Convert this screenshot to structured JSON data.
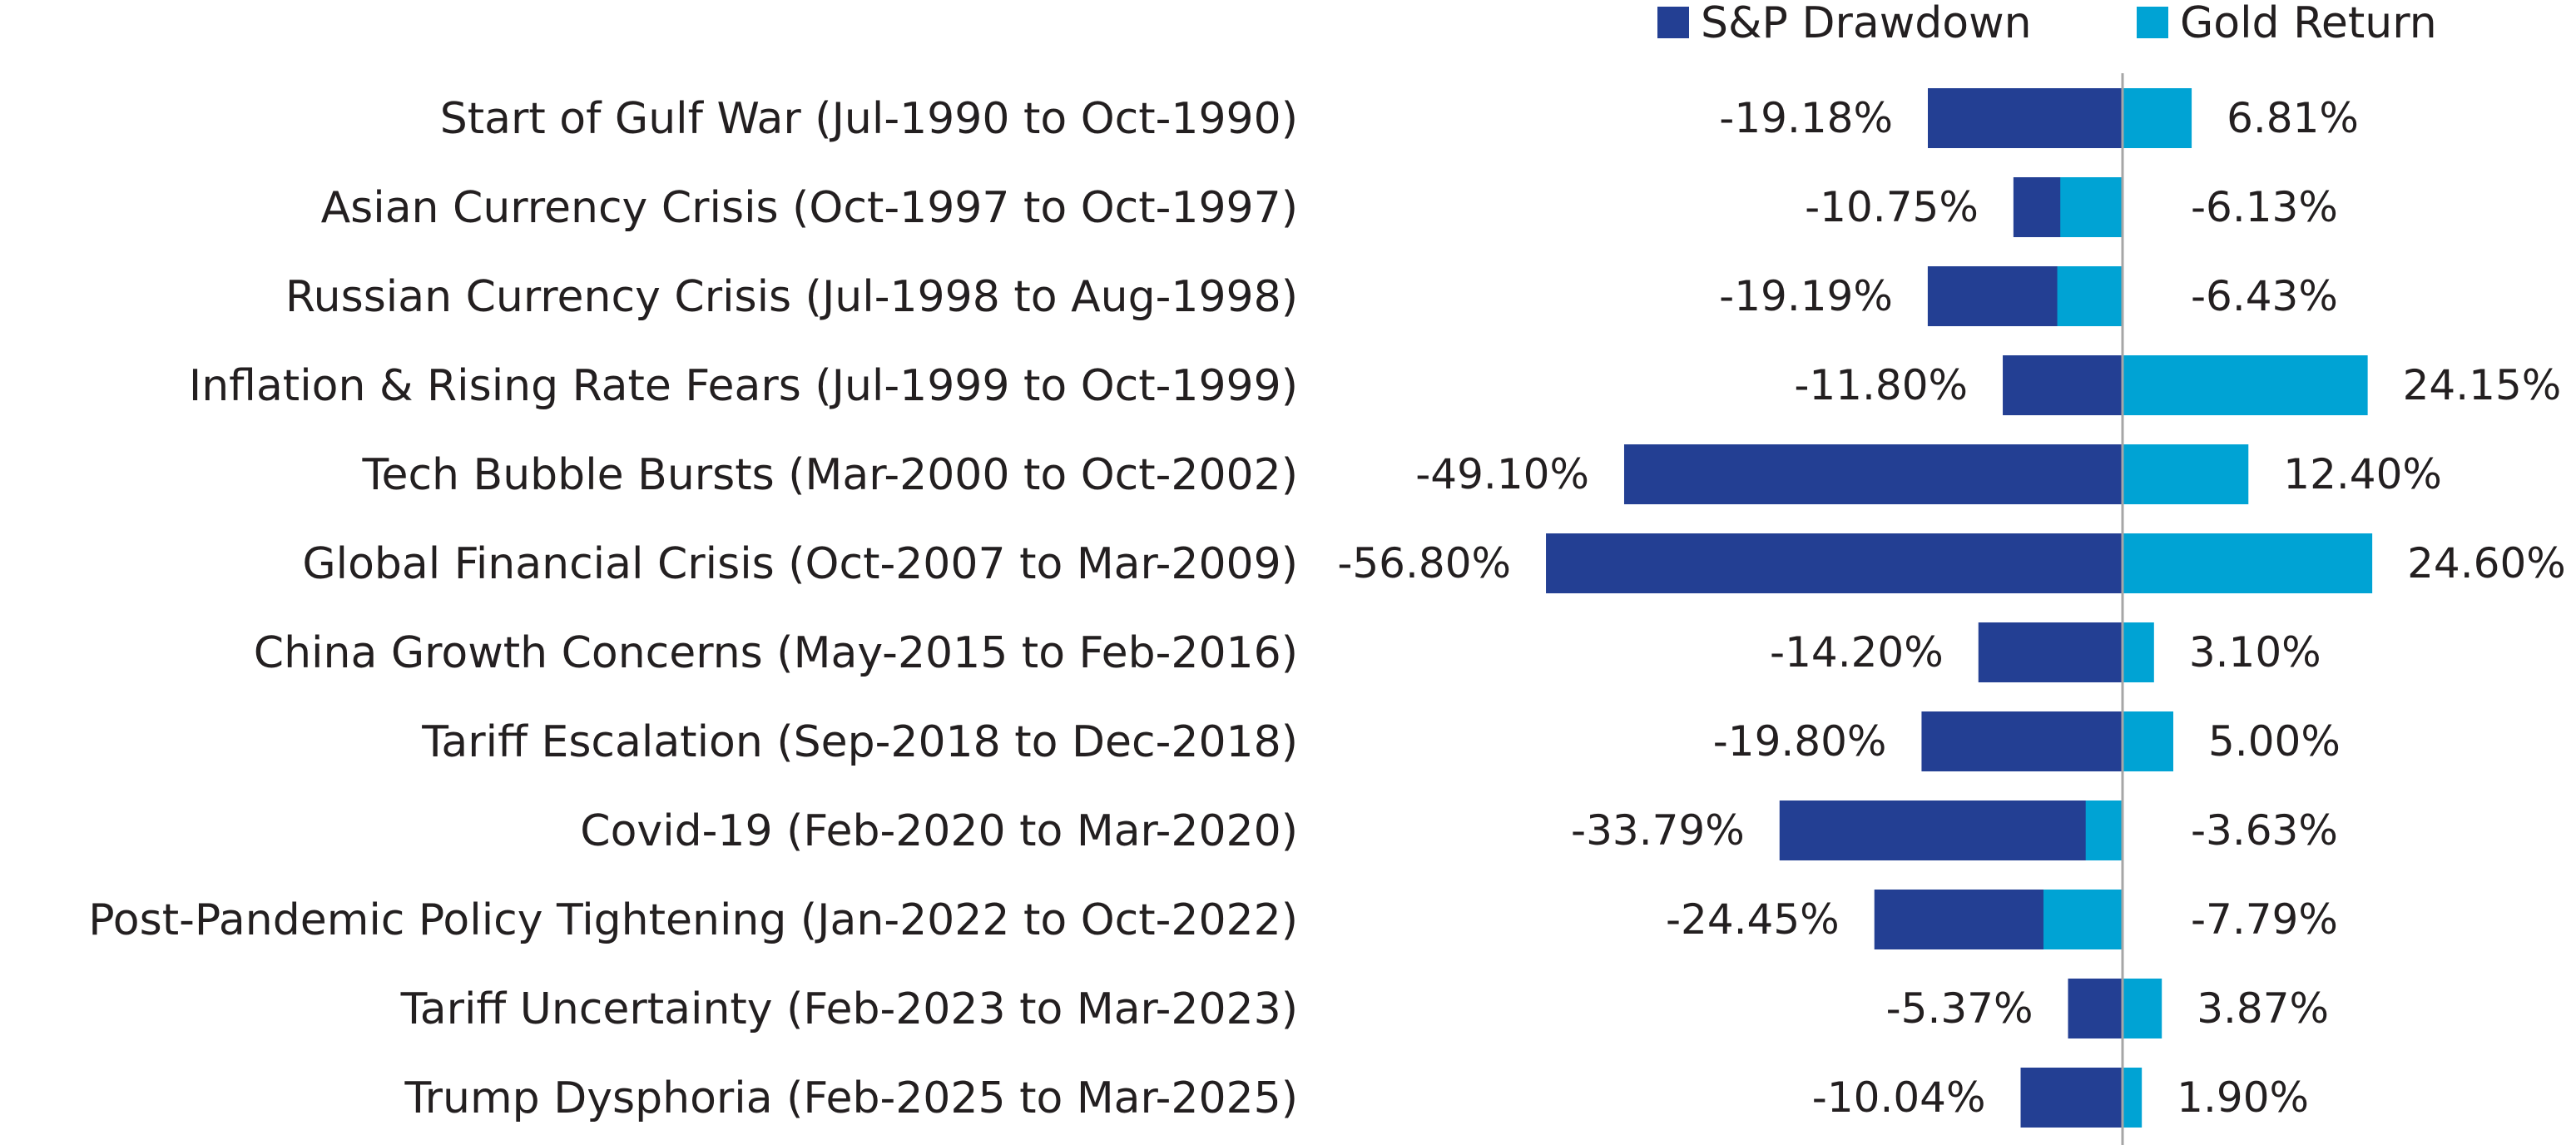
{
  "chart_data": {
    "type": "bar",
    "orientation": "horizontal",
    "categories": [
      "Start of Gulf War (Jul-1990 to Oct-1990)",
      "Asian Currency Crisis (Oct-1997 to Oct-1997)",
      "Russian Currency Crisis (Jul-1998 to Aug-1998)",
      "Inflation & Rising Rate Fears (Jul-1999 to Oct-1999)",
      "Tech Bubble Bursts (Mar-2000 to Oct-2002)",
      "Global Financial Crisis (Oct-2007 to Mar-2009)",
      "China Growth Concerns (May-2015 to Feb-2016)",
      "Tariff Escalation (Sep-2018 to Dec-2018)",
      "Covid-19 (Feb-2020 to Mar-2020)",
      "Post-Pandemic Policy Tightening (Jan-2022 to Oct-2022)",
      "Tariff Uncertainty (Feb-2023 to Mar-2023)",
      "Trump Dysphoria (Feb-2025 to Mar-2025)"
    ],
    "series": [
      {
        "name": "S&P Drawdown",
        "color": "#233f93",
        "values": [
          -19.18,
          -10.75,
          -19.19,
          -11.8,
          -49.1,
          -56.8,
          -14.2,
          -19.8,
          -33.79,
          -24.45,
          -5.37,
          -10.04
        ],
        "labels": [
          "-19.18%",
          "-10.75%",
          "-19.19%",
          "-11.80%",
          "-49.10%",
          "-56.80%",
          "-14.20%",
          "-19.80%",
          "-33.79%",
          "-24.45%",
          "-5.37%",
          "-10.04%"
        ]
      },
      {
        "name": "Gold Return",
        "color": "#00a3d4",
        "values": [
          6.81,
          -6.13,
          -6.43,
          24.15,
          12.4,
          24.6,
          3.1,
          5.0,
          -3.63,
          -7.79,
          3.87,
          1.9
        ],
        "labels": [
          "6.81%",
          "-6.13%",
          "-6.43%",
          "24.15%",
          "12.40%",
          "24.60%",
          "3.10%",
          "5.00%",
          "-3.63%",
          "-7.79%",
          "3.87%",
          "1.90%"
        ]
      }
    ],
    "xlim": [
      -60,
      30
    ],
    "legend_position": "top-right",
    "grid": false,
    "zero_line_color": "#a6a6a6"
  }
}
